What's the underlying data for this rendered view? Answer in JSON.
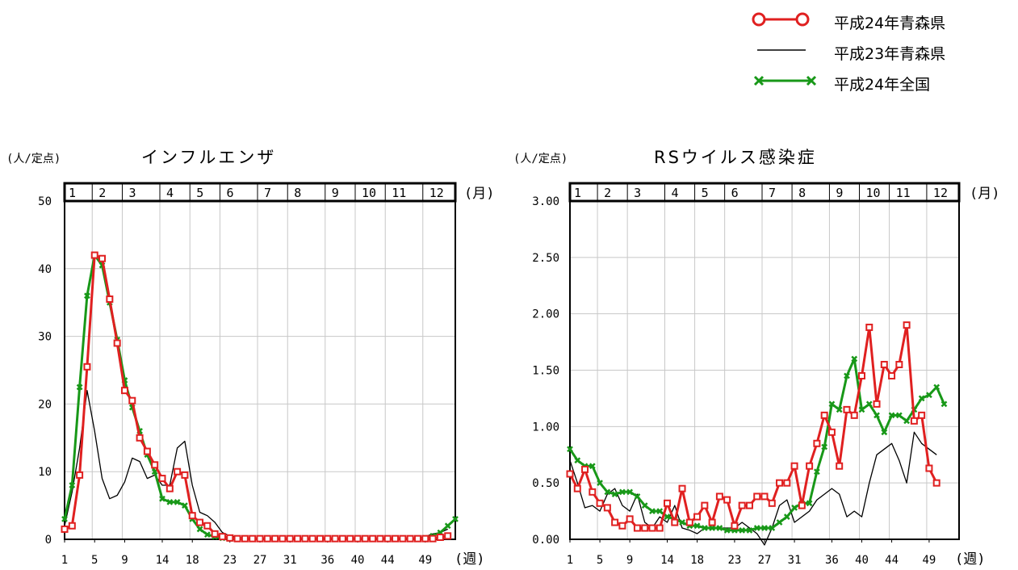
{
  "legend": {
    "items": [
      {
        "label": "平成24年青森県",
        "color": "#e02020",
        "marker": "circle"
      },
      {
        "label": "平成23年青森県",
        "color": "#000000",
        "marker": "none"
      },
      {
        "label": "平成24年全国",
        "color": "#189818",
        "marker": "x"
      }
    ]
  },
  "chart_data": [
    {
      "type": "line",
      "title": "インフルエンザ",
      "ylabel": "(人/定点)",
      "month_unit": "(月)",
      "week_unit": "(週)",
      "months": [
        "1",
        "2",
        "3",
        "4",
        "5",
        "6",
        "7",
        "8",
        "9",
        "10",
        "11",
        "12"
      ],
      "ylim": [
        0,
        50
      ],
      "yticks": [
        "0",
        "10",
        "20",
        "30",
        "40",
        "50"
      ],
      "xlim": [
        1,
        53
      ],
      "xticks": [
        "1",
        "5",
        "9",
        "14",
        "18",
        "23",
        "27",
        "31",
        "36",
        "40",
        "44",
        "49"
      ],
      "grid": true,
      "series": [
        {
          "name": "平成24年青森県",
          "color": "#e02020",
          "marker": "circle",
          "values": [
            1.5,
            2,
            9.5,
            25.5,
            42,
            41.5,
            35.5,
            29,
            22,
            20.5,
            15,
            13,
            11,
            9,
            7.5,
            10,
            9.5,
            3.5,
            2.5,
            2,
            0.8,
            0.4,
            0.2,
            0.1,
            0.1,
            0.1,
            0.1,
            0.1,
            0.1,
            0.1,
            0.1,
            0.1,
            0.1,
            0.1,
            0.1,
            0.1,
            0.1,
            0.1,
            0.1,
            0.1,
            0.1,
            0.1,
            0.1,
            0.1,
            0.1,
            0.1,
            0.1,
            0.1,
            0.1,
            0.1,
            0.3,
            0.5
          ]
        },
        {
          "name": "平成23年青森県",
          "color": "#000000",
          "marker": "none",
          "values": [
            2,
            7,
            13.5,
            22,
            16,
            9,
            6,
            6.5,
            8.5,
            12,
            11.5,
            9,
            9.5,
            8,
            8,
            13.5,
            14.5,
            8,
            4,
            3.5,
            2.5,
            1,
            0.5,
            0.3,
            0.2,
            0.1,
            0.1,
            0.1,
            0.1,
            0.1,
            0.1,
            0.1,
            0.1,
            0.1,
            0.1,
            0.1,
            0.1,
            0.1,
            0.1,
            0.1,
            0.1,
            0.1,
            0.1,
            0.1,
            0.1,
            0.1,
            0.1,
            0.2,
            0.4,
            0.8,
            1,
            1.5
          ]
        },
        {
          "name": "平成24年全国",
          "color": "#189818",
          "marker": "x",
          "values": [
            3,
            8,
            22.5,
            36,
            42,
            40.5,
            35,
            29.5,
            23.5,
            19.5,
            16,
            12.5,
            10,
            6,
            5.5,
            5.5,
            5,
            3,
            1.5,
            0.7,
            0.4,
            0.2,
            0.1,
            0.1,
            0.1,
            0.1,
            0.1,
            0.1,
            0.1,
            0.1,
            0.1,
            0.1,
            0.1,
            0.1,
            0.1,
            0.1,
            0.1,
            0.1,
            0.1,
            0.1,
            0.1,
            0.1,
            0.1,
            0.1,
            0.1,
            0.1,
            0.1,
            0.1,
            0.2,
            0.5,
            1,
            2,
            3
          ]
        }
      ]
    },
    {
      "type": "line",
      "title": "RSウイルス感染症",
      "ylabel": "(人/定点)",
      "month_unit": "(月)",
      "week_unit": "(週)",
      "months": [
        "1",
        "2",
        "3",
        "4",
        "5",
        "6",
        "7",
        "8",
        "9",
        "10",
        "11",
        "12"
      ],
      "ylim": [
        0,
        3
      ],
      "yticks": [
        "0.00",
        "0.50",
        "1.00",
        "1.50",
        "2.00",
        "2.50",
        "3.00"
      ],
      "xlim": [
        1,
        53
      ],
      "xticks": [
        "1",
        "5",
        "9",
        "14",
        "18",
        "23",
        "27",
        "31",
        "36",
        "40",
        "44",
        "49"
      ],
      "grid": true,
      "series": [
        {
          "name": "平成24年青森県",
          "color": "#e02020",
          "marker": "circle",
          "values": [
            0.58,
            0.45,
            0.62,
            0.42,
            0.32,
            0.28,
            0.15,
            0.12,
            0.18,
            0.1,
            0.1,
            0.1,
            0.1,
            0.32,
            0.15,
            0.45,
            0.15,
            0.2,
            0.3,
            0.15,
            0.38,
            0.35,
            0.12,
            0.3,
            0.3,
            0.38,
            0.38,
            0.32,
            0.5,
            0.5,
            0.65,
            0.3,
            0.65,
            0.85,
            1.1,
            0.95,
            0.65,
            1.15,
            1.1,
            1.45,
            1.88,
            1.2,
            1.55,
            1.45,
            1.55,
            1.9,
            1.05,
            1.1,
            0.63,
            0.5
          ]
        },
        {
          "name": "平成23年青森県",
          "color": "#000000",
          "marker": "none",
          "values": [
            0.7,
            0.5,
            0.28,
            0.3,
            0.25,
            0.4,
            0.45,
            0.3,
            0.25,
            0.4,
            0.15,
            0.1,
            0.2,
            0.15,
            0.3,
            0.1,
            0.08,
            0.05,
            0.1,
            0.1,
            0.1,
            0.1,
            0.1,
            0.15,
            0.1,
            0.05,
            -0.05,
            0.1,
            0.3,
            0.35,
            0.15,
            0.2,
            0.25,
            0.35,
            0.4,
            0.45,
            0.4,
            0.2,
            0.25,
            0.2,
            0.5,
            0.75,
            0.8,
            0.85,
            0.7,
            0.5,
            0.95,
            0.85,
            0.8,
            0.75
          ]
        },
        {
          "name": "平成24年全国",
          "color": "#189818",
          "marker": "x",
          "values": [
            0.8,
            0.7,
            0.65,
            0.65,
            0.5,
            0.42,
            0.4,
            0.42,
            0.42,
            0.38,
            0.3,
            0.25,
            0.25,
            0.2,
            0.18,
            0.15,
            0.12,
            0.12,
            0.1,
            0.1,
            0.1,
            0.08,
            0.08,
            0.08,
            0.08,
            0.1,
            0.1,
            0.1,
            0.15,
            0.2,
            0.28,
            0.32,
            0.32,
            0.6,
            0.82,
            1.2,
            1.15,
            1.45,
            1.6,
            1.15,
            1.2,
            1.1,
            0.95,
            1.1,
            1.1,
            1.05,
            1.15,
            1.25,
            1.28,
            1.35,
            1.2
          ]
        }
      ]
    }
  ]
}
